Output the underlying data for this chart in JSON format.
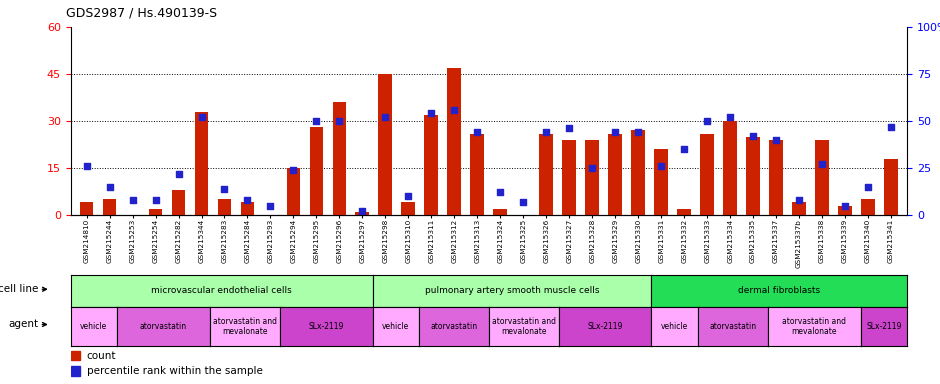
{
  "title": "GDS2987 / Hs.490139-S",
  "samples": [
    "GSM214810",
    "GSM215244",
    "GSM215253",
    "GSM215254",
    "GSM215282",
    "GSM215344",
    "GSM215283",
    "GSM215284",
    "GSM215293",
    "GSM215294",
    "GSM215295",
    "GSM215296",
    "GSM215297",
    "GSM215298",
    "GSM215310",
    "GSM215311",
    "GSM215312",
    "GSM215313",
    "GSM215324",
    "GSM215325",
    "GSM215326",
    "GSM215327",
    "GSM215328",
    "GSM215329",
    "GSM215330",
    "GSM215331",
    "GSM215332",
    "GSM215333",
    "GSM215334",
    "GSM215335",
    "GSM215337",
    "GSM215337b",
    "GSM215338",
    "GSM215339",
    "GSM215340",
    "GSM215341"
  ],
  "counts": [
    4,
    5,
    0,
    2,
    8,
    33,
    5,
    4,
    0,
    15,
    28,
    36,
    1,
    45,
    4,
    32,
    47,
    26,
    2,
    0,
    26,
    24,
    24,
    26,
    27,
    21,
    2,
    26,
    30,
    25,
    24,
    4,
    24,
    3,
    5,
    18
  ],
  "percentile": [
    26,
    15,
    8,
    8,
    22,
    52,
    14,
    8,
    5,
    24,
    50,
    50,
    2,
    52,
    10,
    54,
    56,
    44,
    12,
    7,
    44,
    46,
    25,
    44,
    44,
    26,
    35,
    50,
    52,
    42,
    40,
    8,
    27,
    5,
    15,
    47
  ],
  "left_ylim": [
    0,
    60
  ],
  "right_ylim": [
    0,
    100
  ],
  "left_yticks": [
    0,
    15,
    30,
    45,
    60
  ],
  "right_yticks": [
    0,
    25,
    50,
    75,
    100
  ],
  "bar_color": "#cc2200",
  "dot_color": "#2222cc",
  "cell_line_groups": [
    {
      "label": "microvascular endothelial cells",
      "start": 0,
      "end": 13,
      "color": "#bbffbb"
    },
    {
      "label": "pulmonary artery smooth muscle cells",
      "start": 13,
      "end": 25,
      "color": "#bbffbb"
    },
    {
      "label": "dermal fibroblasts",
      "start": 25,
      "end": 36,
      "color": "#22cc55"
    }
  ],
  "agent_groups": [
    {
      "label": "vehicle",
      "start": 0,
      "end": 2,
      "color": "#ffaaff"
    },
    {
      "label": "atorvastatin",
      "start": 2,
      "end": 6,
      "color": "#ee77ee"
    },
    {
      "label": "atorvastatin and\nmevalonate",
      "start": 6,
      "end": 9,
      "color": "#ffaaff"
    },
    {
      "label": "SLx-2119",
      "start": 9,
      "end": 13,
      "color": "#dd44dd"
    },
    {
      "label": "vehicle",
      "start": 13,
      "end": 15,
      "color": "#ffaaff"
    },
    {
      "label": "atorvastatin",
      "start": 15,
      "end": 18,
      "color": "#ee77ee"
    },
    {
      "label": "atorvastatin and\nmevalonate",
      "start": 18,
      "end": 21,
      "color": "#ffaaff"
    },
    {
      "label": "SLx-2119",
      "start": 21,
      "end": 25,
      "color": "#dd44dd"
    },
    {
      "label": "vehicle",
      "start": 25,
      "end": 27,
      "color": "#ffaaff"
    },
    {
      "label": "atorvastatin",
      "start": 27,
      "end": 30,
      "color": "#ee77ee"
    },
    {
      "label": "atorvastatin and\nmevalonate",
      "start": 30,
      "end": 34,
      "color": "#ffaaff"
    },
    {
      "label": "SLx-2119",
      "start": 34,
      "end": 36,
      "color": "#dd44dd"
    }
  ]
}
